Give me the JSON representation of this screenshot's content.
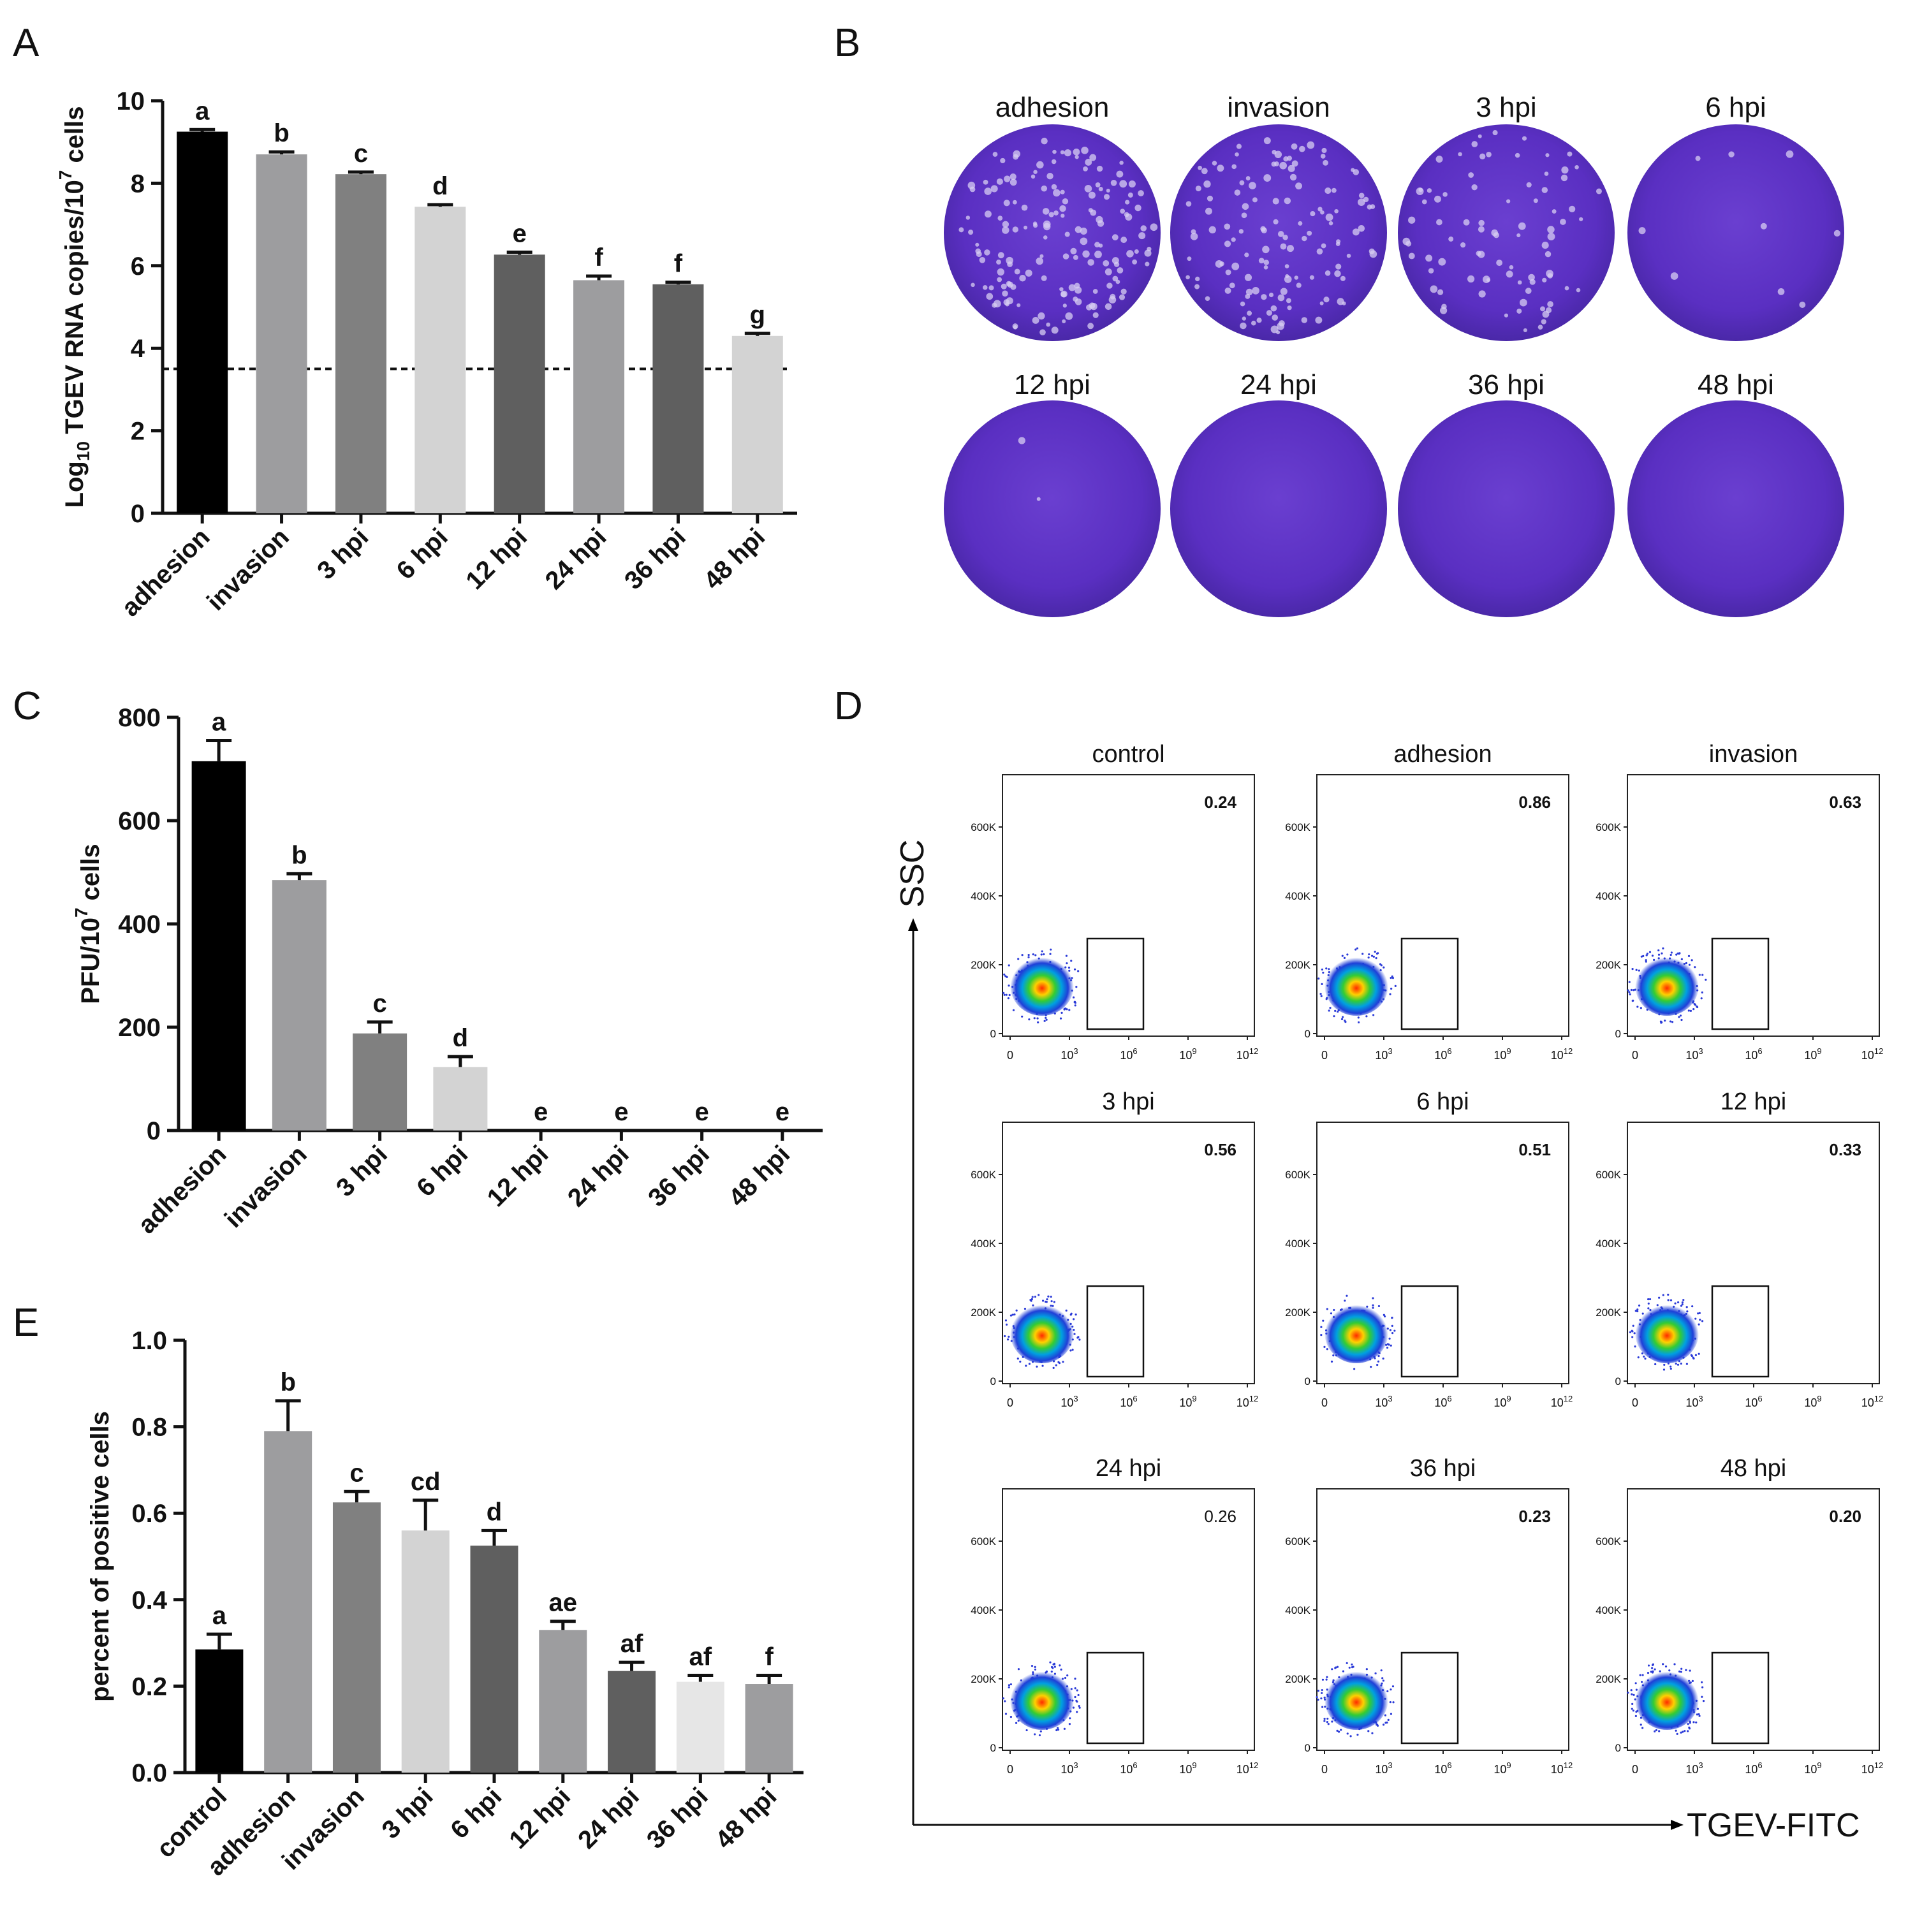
{
  "panels": {
    "A": "A",
    "B": "B",
    "C": "C",
    "D": "D",
    "E": "E"
  },
  "colors": {
    "black": "#000000",
    "mid_gray": "#9d9d9f",
    "gray": "#808080",
    "light_gray": "#d3d3d3",
    "dark_gray": "#5f5f5f",
    "pale": "#e6e6e6",
    "plaque_purple": "#5a2fc2"
  },
  "chart_data": [
    {
      "id": "A",
      "type": "bar",
      "ylabel_main": "Log",
      "ylabel_sub": "10",
      "ylabel_rest": " TGEV RNA copies/10",
      "ylabel_sup": "7",
      "ylabel_end": " cells",
      "categories": [
        "adhesion",
        "invasion",
        "3 hpi",
        "6 hpi",
        "12 hpi",
        "24 hpi",
        "36 hpi",
        "48 hpi"
      ],
      "values": [
        9.25,
        8.7,
        8.22,
        7.43,
        6.27,
        5.65,
        5.55,
        4.3
      ],
      "errors": [
        0.05,
        0.06,
        0.05,
        0.05,
        0.06,
        0.1,
        0.05,
        0.06
      ],
      "letters": [
        "a",
        "b",
        "c",
        "d",
        "e",
        "f",
        "f",
        "g"
      ],
      "ylim": [
        0,
        10
      ],
      "yticks": [
        "0",
        "2",
        "4",
        "6",
        "8",
        "10"
      ],
      "detection_limit": 3.5
    },
    {
      "id": "C",
      "type": "bar",
      "ylabel_main": "PFU/10",
      "ylabel_sup": "7",
      "ylabel_end": " cells",
      "categories": [
        "adhesion",
        "invasion",
        "3 hpi",
        "6 hpi",
        "12 hpi",
        "24 hpi",
        "36 hpi",
        "48 hpi"
      ],
      "values": [
        715,
        485,
        188,
        123,
        0,
        0,
        0,
        0
      ],
      "errors": [
        40,
        12,
        22,
        20,
        0,
        0,
        0,
        0
      ],
      "letters": [
        "a",
        "b",
        "c",
        "d",
        "e",
        "e",
        "e",
        "e"
      ],
      "ylim": [
        0,
        800
      ],
      "yticks": [
        "0",
        "200",
        "400",
        "600",
        "800"
      ]
    },
    {
      "id": "E",
      "type": "bar",
      "ylabel_main": "percent of positive cells",
      "categories": [
        "control",
        "adhesion",
        "invasion",
        "3 hpi",
        "6 hpi",
        "12 hpi",
        "24 hpi",
        "36 hpi",
        "48 hpi"
      ],
      "values": [
        0.285,
        0.79,
        0.625,
        0.56,
        0.525,
        0.33,
        0.235,
        0.21,
        0.205
      ],
      "errors": [
        0.035,
        0.07,
        0.025,
        0.07,
        0.035,
        0.02,
        0.02,
        0.015,
        0.02
      ],
      "letters": [
        "a",
        "b",
        "c",
        "cd",
        "d",
        "ae",
        "af",
        "af",
        "f"
      ],
      "ylim": [
        0,
        1.0
      ],
      "yticks": [
        "0.0",
        "0.2",
        "0.4",
        "0.6",
        "0.8",
        "1.0"
      ]
    }
  ],
  "plaques": {
    "labels": [
      "adhesion",
      "invasion",
      "3 hpi",
      "6 hpi",
      "12 hpi",
      "24 hpi",
      "36 hpi",
      "48 hpi"
    ],
    "plaque_density": [
      1.0,
      0.8,
      0.5,
      0.05,
      0.01,
      0,
      0,
      0
    ]
  },
  "flow": {
    "x_axis_label": "TGEV-FITC",
    "y_axis_label": "SSC",
    "yticks": [
      "0",
      "200K",
      "400K",
      "600K"
    ],
    "xtick_base": "10",
    "xtick_exps": [
      "",
      "3",
      "6",
      "9",
      "12"
    ],
    "plots": [
      {
        "title": "control",
        "value": "0.24",
        "bold": true
      },
      {
        "title": "adhesion",
        "value": "0.86",
        "bold": true
      },
      {
        "title": "invasion",
        "value": "0.63",
        "bold": true
      },
      {
        "title": "3 hpi",
        "value": "0.56",
        "bold": true
      },
      {
        "title": "6 hpi",
        "value": "0.51",
        "bold": true
      },
      {
        "title": "12 hpi",
        "value": "0.33",
        "bold": true
      },
      {
        "title": "24 hpi",
        "value": "0.26",
        "bold": false
      },
      {
        "title": "36 hpi",
        "value": "0.23",
        "bold": true
      },
      {
        "title": "48 hpi",
        "value": "0.20",
        "bold": true
      }
    ]
  }
}
